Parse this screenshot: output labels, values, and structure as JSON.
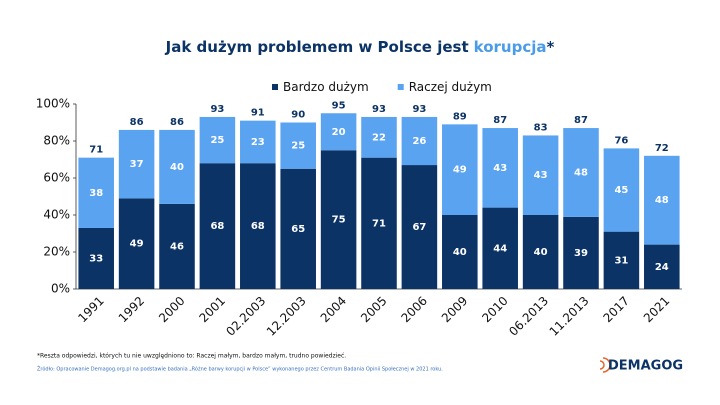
{
  "chart_data": {
    "type": "stacked_bar",
    "title_main": "Jak dużym problemem w Polsce jest",
    "title_highlight": "korupcja",
    "title_suffix": "*",
    "categories": [
      "1991",
      "1992",
      "2000",
      "2001",
      "02.2003",
      "12.2003",
      "2004",
      "2005",
      "2006",
      "2009",
      "2010",
      "06.2013",
      "11.2013",
      "2017",
      "2021"
    ],
    "series": [
      {
        "name": "Bardzo dużym",
        "color": "#0c3366",
        "values": [
          33,
          49,
          46,
          68,
          68,
          65,
          75,
          71,
          67,
          40,
          44,
          40,
          39,
          31,
          24
        ]
      },
      {
        "name": "Raczej dużym",
        "color": "#5aa3f0",
        "values": [
          38,
          37,
          40,
          25,
          23,
          25,
          20,
          22,
          26,
          49,
          43,
          43,
          48,
          45,
          48
        ]
      }
    ],
    "totals": [
      71,
      86,
      86,
      93,
      91,
      90,
      95,
      93,
      93,
      89,
      87,
      83,
      87,
      76,
      72
    ],
    "ylim": [
      0,
      100
    ],
    "yticks": [
      {
        "value": 0,
        "label": "0%"
      },
      {
        "value": 20,
        "label": "20%"
      },
      {
        "value": 40,
        "label": "40%"
      },
      {
        "value": 60,
        "label": "60%"
      },
      {
        "value": 80,
        "label": "80%"
      },
      {
        "value": 100,
        "label": "100%"
      }
    ],
    "footnote": "*Reszta odpowiedzi, których tu nie uwzględniono to: Raczej małym, bardzo małym, trudno powiedzieć.",
    "source": "Źródło: Opracowanie Demagog.org.pl na podstawie  badania „Różne barwy korupcji w Polsce” wykonanego przez Centrum Badania Opinii Społecznej  w 2021 roku.",
    "logo": "DEMAGOG"
  }
}
